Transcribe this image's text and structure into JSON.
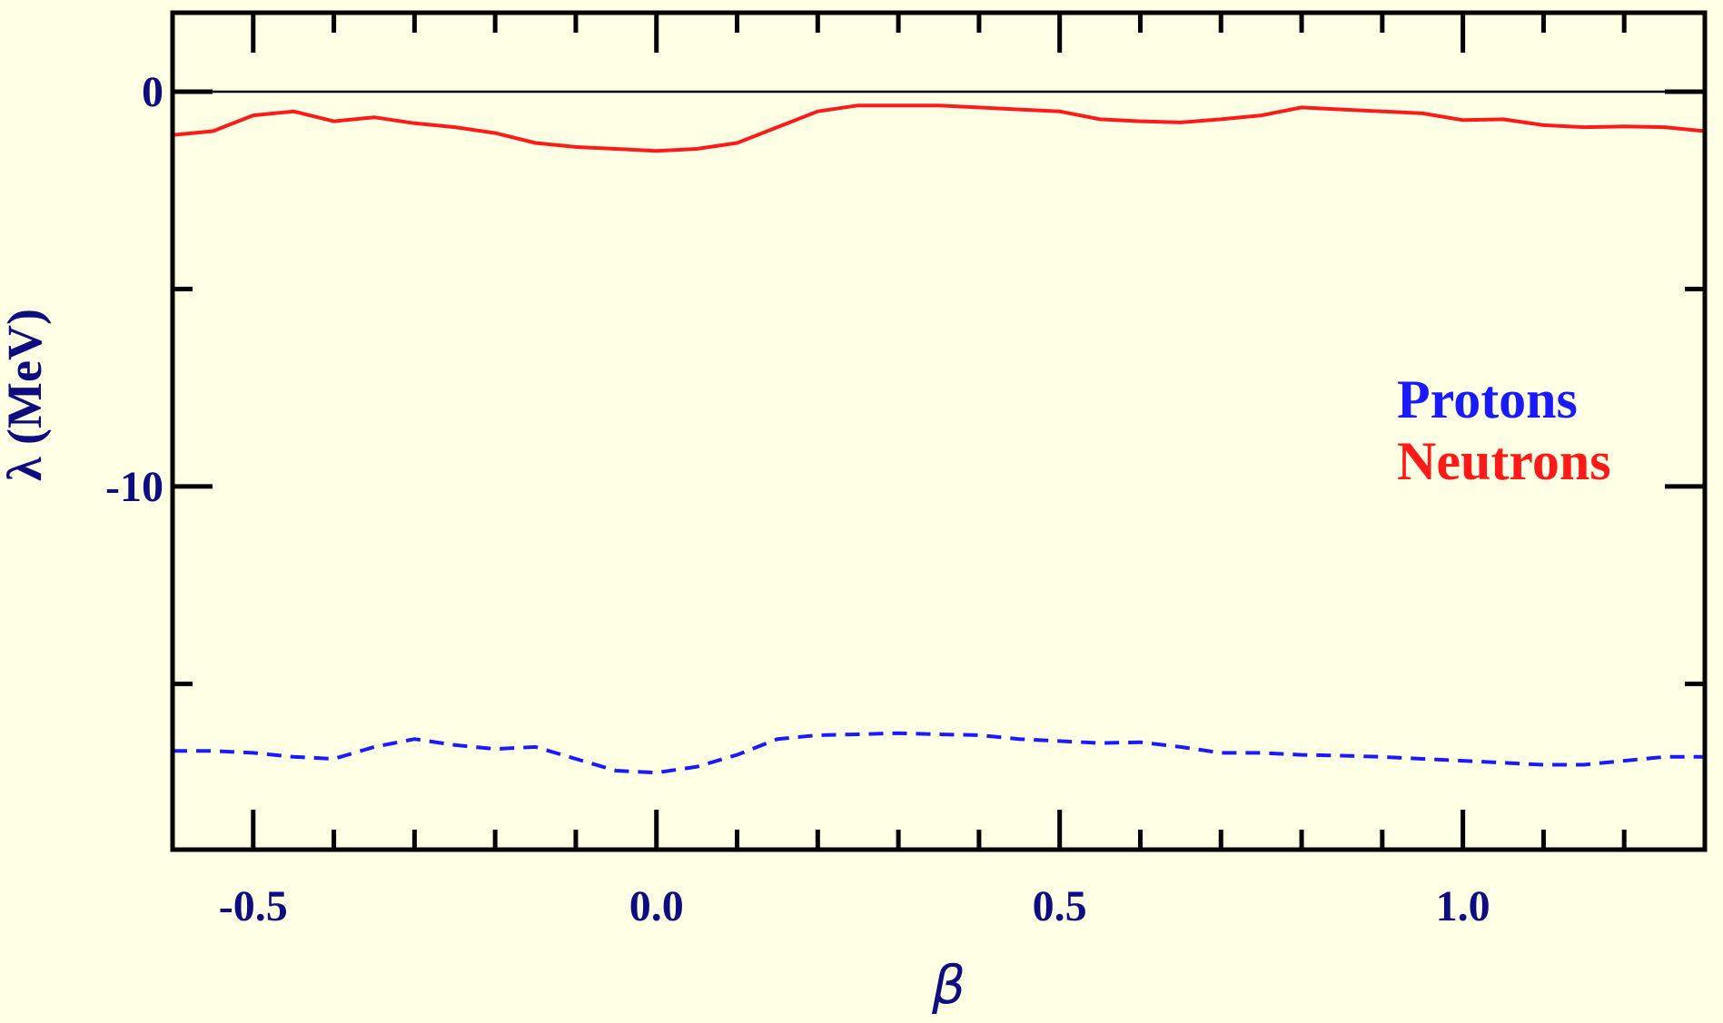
{
  "chart_data": {
    "type": "line",
    "xlabel": "β",
    "ylabel": "λ (MeV)",
    "xlim": [
      -0.6,
      1.3
    ],
    "ylim": [
      -19.2,
      2.0
    ],
    "x_ticks": [
      {
        "value": -0.5,
        "label": "-0.5"
      },
      {
        "value": 0.0,
        "label": "0.0"
      },
      {
        "value": 0.5,
        "label": "0.5"
      },
      {
        "value": 1.0,
        "label": "1.0"
      }
    ],
    "x_minor_step": 0.1,
    "y_ticks": [
      {
        "value": 0,
        "label": "0"
      },
      {
        "value": -10,
        "label": "-10"
      }
    ],
    "y_minor": [
      -5,
      -15
    ],
    "zero_line": true,
    "legend_position": "right",
    "series": [
      {
        "name": "Protons",
        "color": "#1a1aff",
        "dash": "dashed",
        "x": [
          -0.6,
          -0.55,
          -0.5,
          -0.45,
          -0.4,
          -0.35,
          -0.3,
          -0.25,
          -0.2,
          -0.15,
          -0.1,
          -0.05,
          0.0,
          0.05,
          0.1,
          0.15,
          0.2,
          0.25,
          0.3,
          0.35,
          0.4,
          0.45,
          0.5,
          0.55,
          0.6,
          0.65,
          0.7,
          0.75,
          0.8,
          0.85,
          0.9,
          0.95,
          1.0,
          1.05,
          1.1,
          1.15,
          1.2,
          1.25,
          1.3
        ],
        "y": [
          -16.7,
          -16.7,
          -16.75,
          -16.85,
          -16.9,
          -16.6,
          -16.4,
          -16.55,
          -16.65,
          -16.6,
          -16.9,
          -17.2,
          -17.25,
          -17.1,
          -16.8,
          -16.4,
          -16.3,
          -16.28,
          -16.25,
          -16.28,
          -16.3,
          -16.4,
          -16.45,
          -16.5,
          -16.48,
          -16.6,
          -16.75,
          -16.75,
          -16.8,
          -16.82,
          -16.85,
          -16.9,
          -16.95,
          -17.0,
          -17.05,
          -17.05,
          -16.95,
          -16.85,
          -16.85
        ]
      },
      {
        "name": "Neutrons",
        "color": "#ff1a1a",
        "dash": "solid",
        "x": [
          -0.6,
          -0.55,
          -0.5,
          -0.45,
          -0.4,
          -0.35,
          -0.3,
          -0.25,
          -0.2,
          -0.15,
          -0.1,
          -0.05,
          0.0,
          0.05,
          0.1,
          0.15,
          0.2,
          0.25,
          0.3,
          0.35,
          0.4,
          0.45,
          0.5,
          0.55,
          0.6,
          0.65,
          0.7,
          0.75,
          0.8,
          0.85,
          0.9,
          0.95,
          1.0,
          1.05,
          1.1,
          1.15,
          1.2,
          1.25,
          1.3
        ],
        "y": [
          -1.1,
          -1.0,
          -0.6,
          -0.5,
          -0.75,
          -0.65,
          -0.8,
          -0.9,
          -1.05,
          -1.3,
          -1.4,
          -1.45,
          -1.5,
          -1.45,
          -1.3,
          -0.9,
          -0.5,
          -0.35,
          -0.35,
          -0.35,
          -0.4,
          -0.45,
          -0.5,
          -0.7,
          -0.75,
          -0.78,
          -0.7,
          -0.6,
          -0.4,
          -0.45,
          -0.5,
          -0.55,
          -0.72,
          -0.7,
          -0.85,
          -0.9,
          -0.88,
          -0.9,
          -1.0
        ]
      }
    ]
  }
}
